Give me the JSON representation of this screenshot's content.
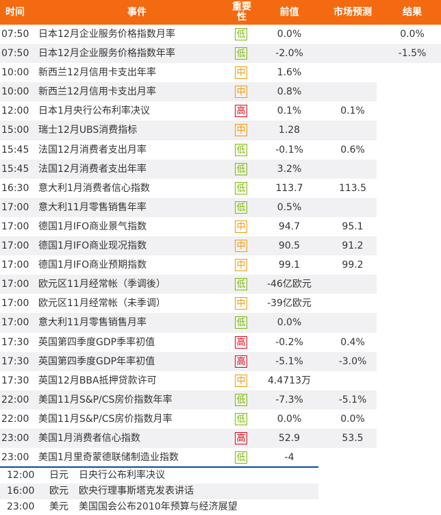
{
  "header": {
    "time": "时间",
    "event": "事件",
    "importance": "重要性",
    "previous": "前值",
    "forecast": "市场预测",
    "result": "结果",
    "color": "#f36a10"
  },
  "importance_colors": {
    "低": "#7ab800",
    "中": "#f39800",
    "高": "#e60012"
  },
  "events": [
    {
      "time": "07:50",
      "event": "日本12月企业服务价格指数月率",
      "importance": "低",
      "previous": "0.0%",
      "forecast": "",
      "result": "0.0%"
    },
    {
      "time": "07:50",
      "event": "日本12月企业服务价格指数年率",
      "importance": "低",
      "previous": "-2.0%",
      "forecast": "",
      "result": "-1.5%"
    },
    {
      "time": "10:00",
      "event": "新西兰12月信用卡支出年率",
      "importance": "中",
      "previous": "1.6%",
      "forecast": "",
      "result": ""
    },
    {
      "time": "10:00",
      "event": "新西兰12月信用卡支出月率",
      "importance": "中",
      "previous": "0.8%",
      "forecast": "",
      "result": ""
    },
    {
      "time": "12:00",
      "event": "日本1月央行公布利率决议",
      "importance": "高",
      "previous": "0.1%",
      "forecast": "0.1%",
      "result": ""
    },
    {
      "time": "15:00",
      "event": "瑞士12月UBS消费指标",
      "importance": "中",
      "previous": "1.28",
      "forecast": "",
      "result": ""
    },
    {
      "time": "15:45",
      "event": "法国12月消费者支出月率",
      "importance": "低",
      "previous": "-0.1%",
      "forecast": "0.6%",
      "result": ""
    },
    {
      "time": "15:45",
      "event": "法国12月消费者支出年率",
      "importance": "低",
      "previous": "3.2%",
      "forecast": "",
      "result": ""
    },
    {
      "time": "16:30",
      "event": "意大利1月消费者信心指数",
      "importance": "低",
      "previous": "113.7",
      "forecast": "113.5",
      "result": ""
    },
    {
      "time": "17:00",
      "event": "意大利11月零售销售年率",
      "importance": "低",
      "previous": "0.5%",
      "forecast": "",
      "result": ""
    },
    {
      "time": "17:00",
      "event": "德国1月IFO商业景气指数",
      "importance": "中",
      "previous": "94.7",
      "forecast": "95.1",
      "result": ""
    },
    {
      "time": "17:00",
      "event": "德国1月IFO商业现况指数",
      "importance": "中",
      "previous": "90.5",
      "forecast": "91.2",
      "result": ""
    },
    {
      "time": "17:00",
      "event": "德国1月IFO商业预期指数",
      "importance": "中",
      "previous": "99.1",
      "forecast": "99.2",
      "result": ""
    },
    {
      "time": "17:00",
      "event": "欧元区11月经常帐（季调後）",
      "importance": "低",
      "previous": "-46亿欧元",
      "forecast": "",
      "result": ""
    },
    {
      "time": "17:00",
      "event": "欧元区11月经常帐（未季调）",
      "importance": "中",
      "previous": "-39亿欧元",
      "forecast": "",
      "result": ""
    },
    {
      "time": "17:00",
      "event": "意大利11月零售销售月率",
      "importance": "低",
      "previous": "0.0%",
      "forecast": "",
      "result": ""
    },
    {
      "time": "17:30",
      "event": "英国第四季度GDP季率初值",
      "importance": "高",
      "previous": "-0.2%",
      "forecast": "0.4%",
      "result": ""
    },
    {
      "time": "17:30",
      "event": "英国第四季度GDP年率初值",
      "importance": "高",
      "previous": "-5.1%",
      "forecast": "-3.0%",
      "result": ""
    },
    {
      "time": "17:30",
      "event": "英国12月BBA抵押贷款许可",
      "importance": "中",
      "previous": "4.4713万",
      "forecast": "",
      "result": ""
    },
    {
      "time": "22:00",
      "event": "美国11月S&P/CS房价指数年率",
      "importance": "低",
      "previous": "-7.3%",
      "forecast": "-5.1%",
      "result": ""
    },
    {
      "time": "22:00",
      "event": "美国11月S&P/CS房价指数月率",
      "importance": "低",
      "previous": "0.0%",
      "forecast": "0.0%",
      "result": ""
    },
    {
      "time": "23:00",
      "event": "美国1月消费者信心指数",
      "importance": "高",
      "previous": "52.9",
      "forecast": "53.5",
      "result": ""
    },
    {
      "time": "23:00",
      "event": "美国1月里奇蒙德联储制造业指数",
      "importance": "低",
      "previous": "-4",
      "forecast": "",
      "result": ""
    }
  ],
  "speeches": [
    {
      "time": "12:00",
      "currency": "日元",
      "event": "日央行公布利率决议"
    },
    {
      "time": "16:00",
      "currency": "欧元",
      "event": "欧央行理事斯塔克发表讲话"
    },
    {
      "time": "23:00",
      "currency": "美元",
      "event": "美国国会公布2010年预算与经济展望"
    }
  ]
}
